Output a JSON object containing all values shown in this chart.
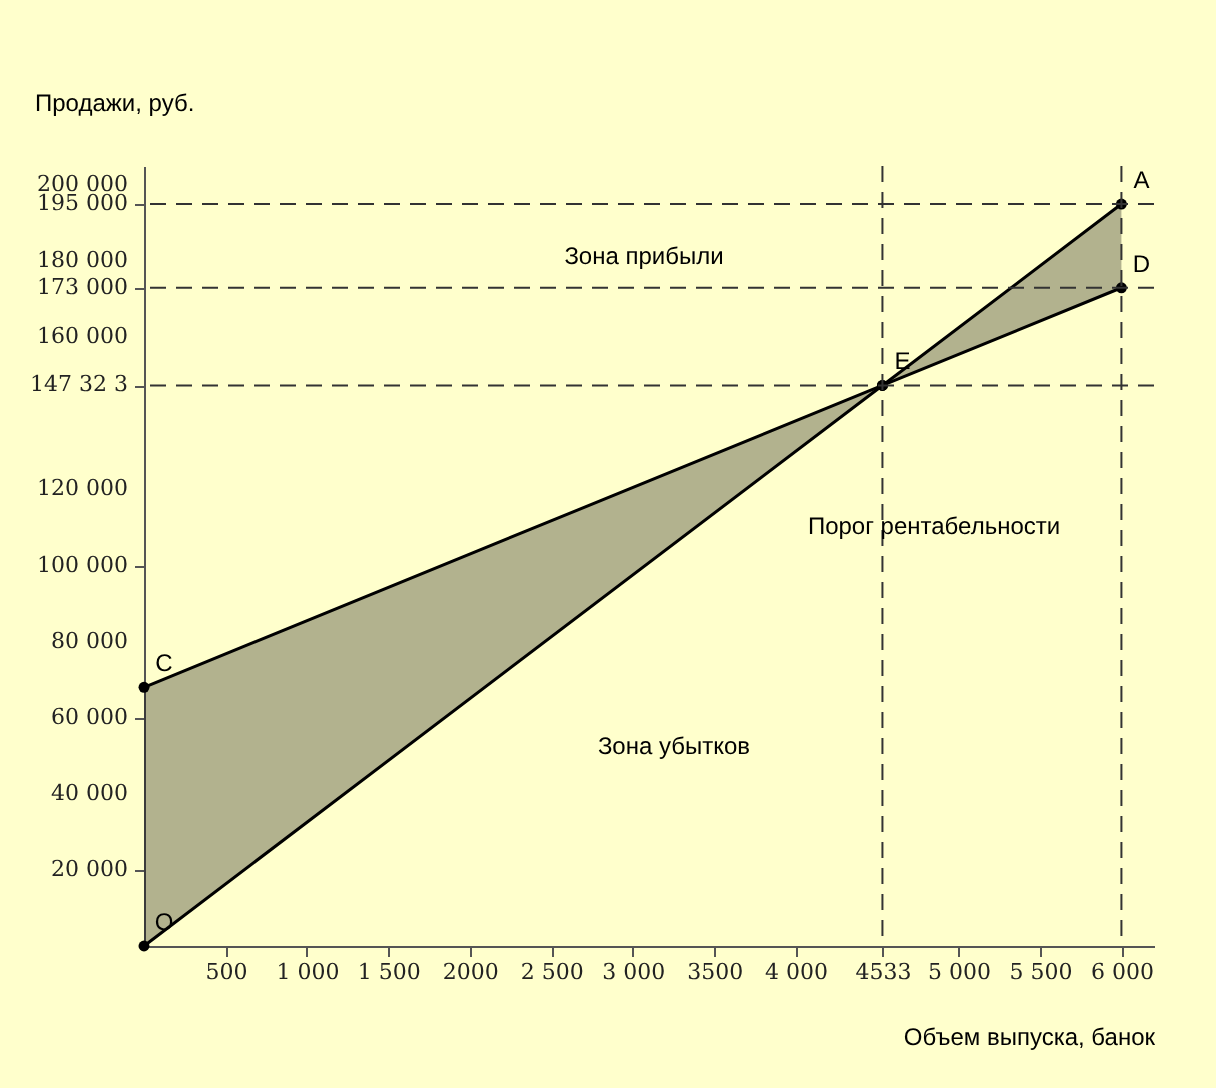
{
  "chart_data": {
    "type": "line",
    "xlabel": "Объем выпуска, банок",
    "ylabel": "Продажи, руб.",
    "xlim": [
      0,
      6200
    ],
    "ylim": [
      0,
      205000
    ],
    "xticks": [
      {
        "value": 500,
        "label": "500"
      },
      {
        "value": 1000,
        "label": "1 000"
      },
      {
        "value": 1500,
        "label": "1 500"
      },
      {
        "value": 2000,
        "label": "2000"
      },
      {
        "value": 2500,
        "label": "2 500"
      },
      {
        "value": 3000,
        "label": "3 000"
      },
      {
        "value": 3500,
        "label": "3500"
      },
      {
        "value": 4000,
        "label": "4 000"
      },
      {
        "value": 4533,
        "label": "4533"
      },
      {
        "value": 5000,
        "label": "5 000"
      },
      {
        "value": 5500,
        "label": "5 500"
      },
      {
        "value": 6000,
        "label": "6 000"
      }
    ],
    "yticks": [
      {
        "value": 20000,
        "label": "20 000"
      },
      {
        "value": 40000,
        "label": "40 000"
      },
      {
        "value": 60000,
        "label": "60 000"
      },
      {
        "value": 80000,
        "label": "80 000"
      },
      {
        "value": 100000,
        "label": "100 000"
      },
      {
        "value": 120000,
        "label": "120 000"
      },
      {
        "value": 147323,
        "label": "147 32 3"
      },
      {
        "value": 160000,
        "label": "160 000"
      },
      {
        "value": 173000,
        "label": "173 000"
      },
      {
        "value": 180000,
        "label": "180 000"
      },
      {
        "value": 195000,
        "label": "195 000"
      },
      {
        "value": 200000,
        "label": "200 000"
      }
    ],
    "series": [
      {
        "color": "#000000",
        "x": [
          0,
          4533,
          6000
        ],
        "values": [
          0,
          147323,
          195000
        ]
      },
      {
        "color": "#000000",
        "x": [
          0,
          4533,
          6000
        ],
        "values": [
          68000,
          147323,
          173000
        ],
        "lower": [
          0,
          147323,
          173000
        ],
        "upper": [
          68000,
          147323,
          195000
        ]
      }
    ],
    "marker": "circle",
    "line_style": "solid",
    "grid": false,
    "ref_lines": [
      {
        "axis": "y",
        "value": 195000,
        "line_style": "dashed",
        "color": "#333333"
      },
      {
        "axis": "y",
        "value": 173000,
        "line_style": "dashed",
        "color": "#333333"
      },
      {
        "axis": "y",
        "value": 147323,
        "line_style": "dashed",
        "color": "#333333"
      },
      {
        "axis": "x",
        "value": 4533,
        "line_style": "dashed",
        "color": "#333333"
      },
      {
        "axis": "x",
        "value": 6000,
        "line_style": "dashed",
        "color": "#333333"
      }
    ],
    "annotations": [
      {
        "text": "O",
        "x": 0,
        "y": 0
      },
      {
        "text": "C",
        "x": 0,
        "y": 68000
      },
      {
        "text": "E",
        "x": 4533,
        "y": 147323
      },
      {
        "text": "A",
        "x": 6000,
        "y": 195000
      },
      {
        "text": "D",
        "x": 6000,
        "y": 173000
      },
      "Зона прибыли",
      "Порог рентабельности",
      "Зона убытков"
    ]
  }
}
